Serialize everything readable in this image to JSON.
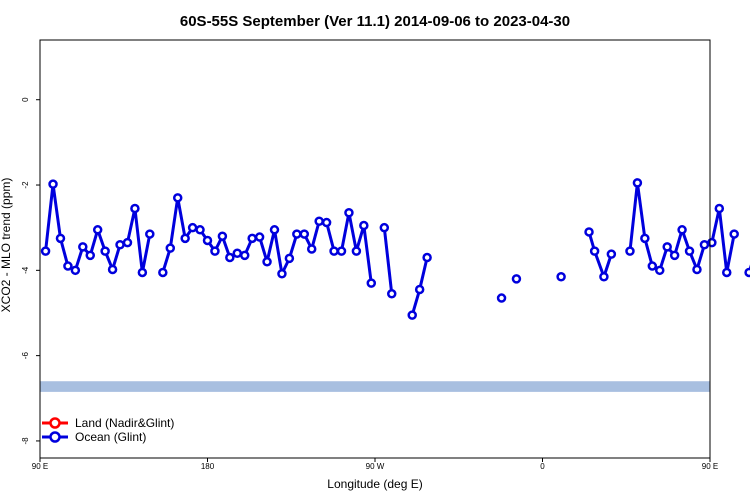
{
  "chart_data": {
    "type": "line",
    "title": "60S-55S September (Ver 11.1)   2014-09-06 to 2023-04-30",
    "xlabel": "Longitude (deg E)",
    "ylabel": "XCO2 - MLO trend (ppm)",
    "xlim": [
      90,
      450
    ],
    "ylim": [
      -8.4,
      1.4
    ],
    "xticks": [
      {
        "value": 90,
        "label": "90 E"
      },
      {
        "value": 180,
        "label": "180"
      },
      {
        "value": 270,
        "label": "90 W"
      },
      {
        "value": 360,
        "label": "0"
      },
      {
        "value": 450,
        "label": "90 E"
      },
      {
        "value": 540,
        "label": "180"
      }
    ],
    "yticks": [
      0,
      -2,
      -4,
      -6,
      -8
    ],
    "band": {
      "y_min": -6.85,
      "y_max": -6.6,
      "color": "#a8bfe0"
    },
    "legend": {
      "placement": "bottom-left"
    },
    "series": [
      {
        "name": "Land (Nadir&Glint)",
        "color": "#ff0000",
        "points": []
      },
      {
        "name": "Ocean (Glint)",
        "color": "#0000dd",
        "points": [
          [
            93,
            -3.55
          ],
          [
            97,
            -1.98
          ],
          [
            101,
            -3.25
          ],
          [
            105,
            -3.9
          ],
          [
            109,
            -4.0
          ],
          [
            113,
            -3.45
          ],
          [
            117,
            -3.65
          ],
          [
            121,
            -3.05
          ],
          [
            125,
            -3.55
          ],
          [
            129,
            -3.98
          ],
          [
            133,
            -3.4
          ],
          [
            137,
            -3.35
          ],
          [
            141,
            -2.55
          ],
          [
            145,
            -4.05
          ],
          [
            149,
            -3.15
          ],
          null,
          [
            156,
            -4.05
          ],
          [
            160,
            -3.48
          ],
          [
            164,
            -2.3
          ],
          [
            168,
            -3.25
          ],
          [
            172,
            -3.0
          ],
          [
            176,
            -3.05
          ],
          [
            180,
            -3.3
          ],
          [
            184,
            -3.55
          ],
          [
            188,
            -3.2
          ],
          [
            192,
            -3.7
          ],
          [
            196,
            -3.6
          ],
          [
            200,
            -3.65
          ],
          [
            204,
            -3.25
          ],
          [
            208,
            -3.22
          ],
          [
            212,
            -3.8
          ],
          [
            216,
            -3.05
          ],
          [
            220,
            -4.08
          ],
          [
            224,
            -3.72
          ],
          [
            228,
            -3.15
          ],
          [
            232,
            -3.15
          ],
          [
            236,
            -3.5
          ],
          [
            240,
            -2.85
          ],
          [
            244,
            -2.88
          ],
          [
            248,
            -3.55
          ],
          [
            252,
            -3.55
          ],
          [
            256,
            -2.65
          ],
          [
            260,
            -3.55
          ],
          [
            264,
            -2.95
          ],
          [
            268,
            -4.3
          ],
          null,
          [
            275,
            -3.0
          ],
          [
            279,
            -4.55
          ],
          null,
          [
            290,
            -5.05
          ],
          [
            294,
            -4.45
          ],
          [
            298,
            -3.7
          ],
          null,
          [
            338,
            -4.65
          ],
          null,
          [
            346,
            -4.2
          ],
          null,
          [
            370,
            -4.15
          ],
          null,
          [
            385,
            -3.1
          ],
          [
            388,
            -3.55
          ],
          [
            393,
            -4.15
          ],
          [
            397,
            -3.62
          ],
          null,
          [
            407,
            -3.55
          ],
          [
            411,
            -1.95
          ],
          [
            415,
            -3.25
          ],
          [
            419,
            -3.9
          ],
          [
            423,
            -4.0
          ],
          [
            427,
            -3.45
          ],
          [
            431,
            -3.65
          ],
          [
            435,
            -3.05
          ],
          [
            439,
            -3.55
          ],
          [
            443,
            -3.98
          ],
          [
            447,
            -3.4
          ],
          [
            451,
            -3.35
          ],
          [
            455,
            -2.55
          ],
          [
            459,
            -4.05
          ],
          [
            463,
            -3.15
          ],
          null,
          [
            471,
            -4.05
          ],
          [
            475,
            -3.48
          ]
        ]
      }
    ]
  }
}
